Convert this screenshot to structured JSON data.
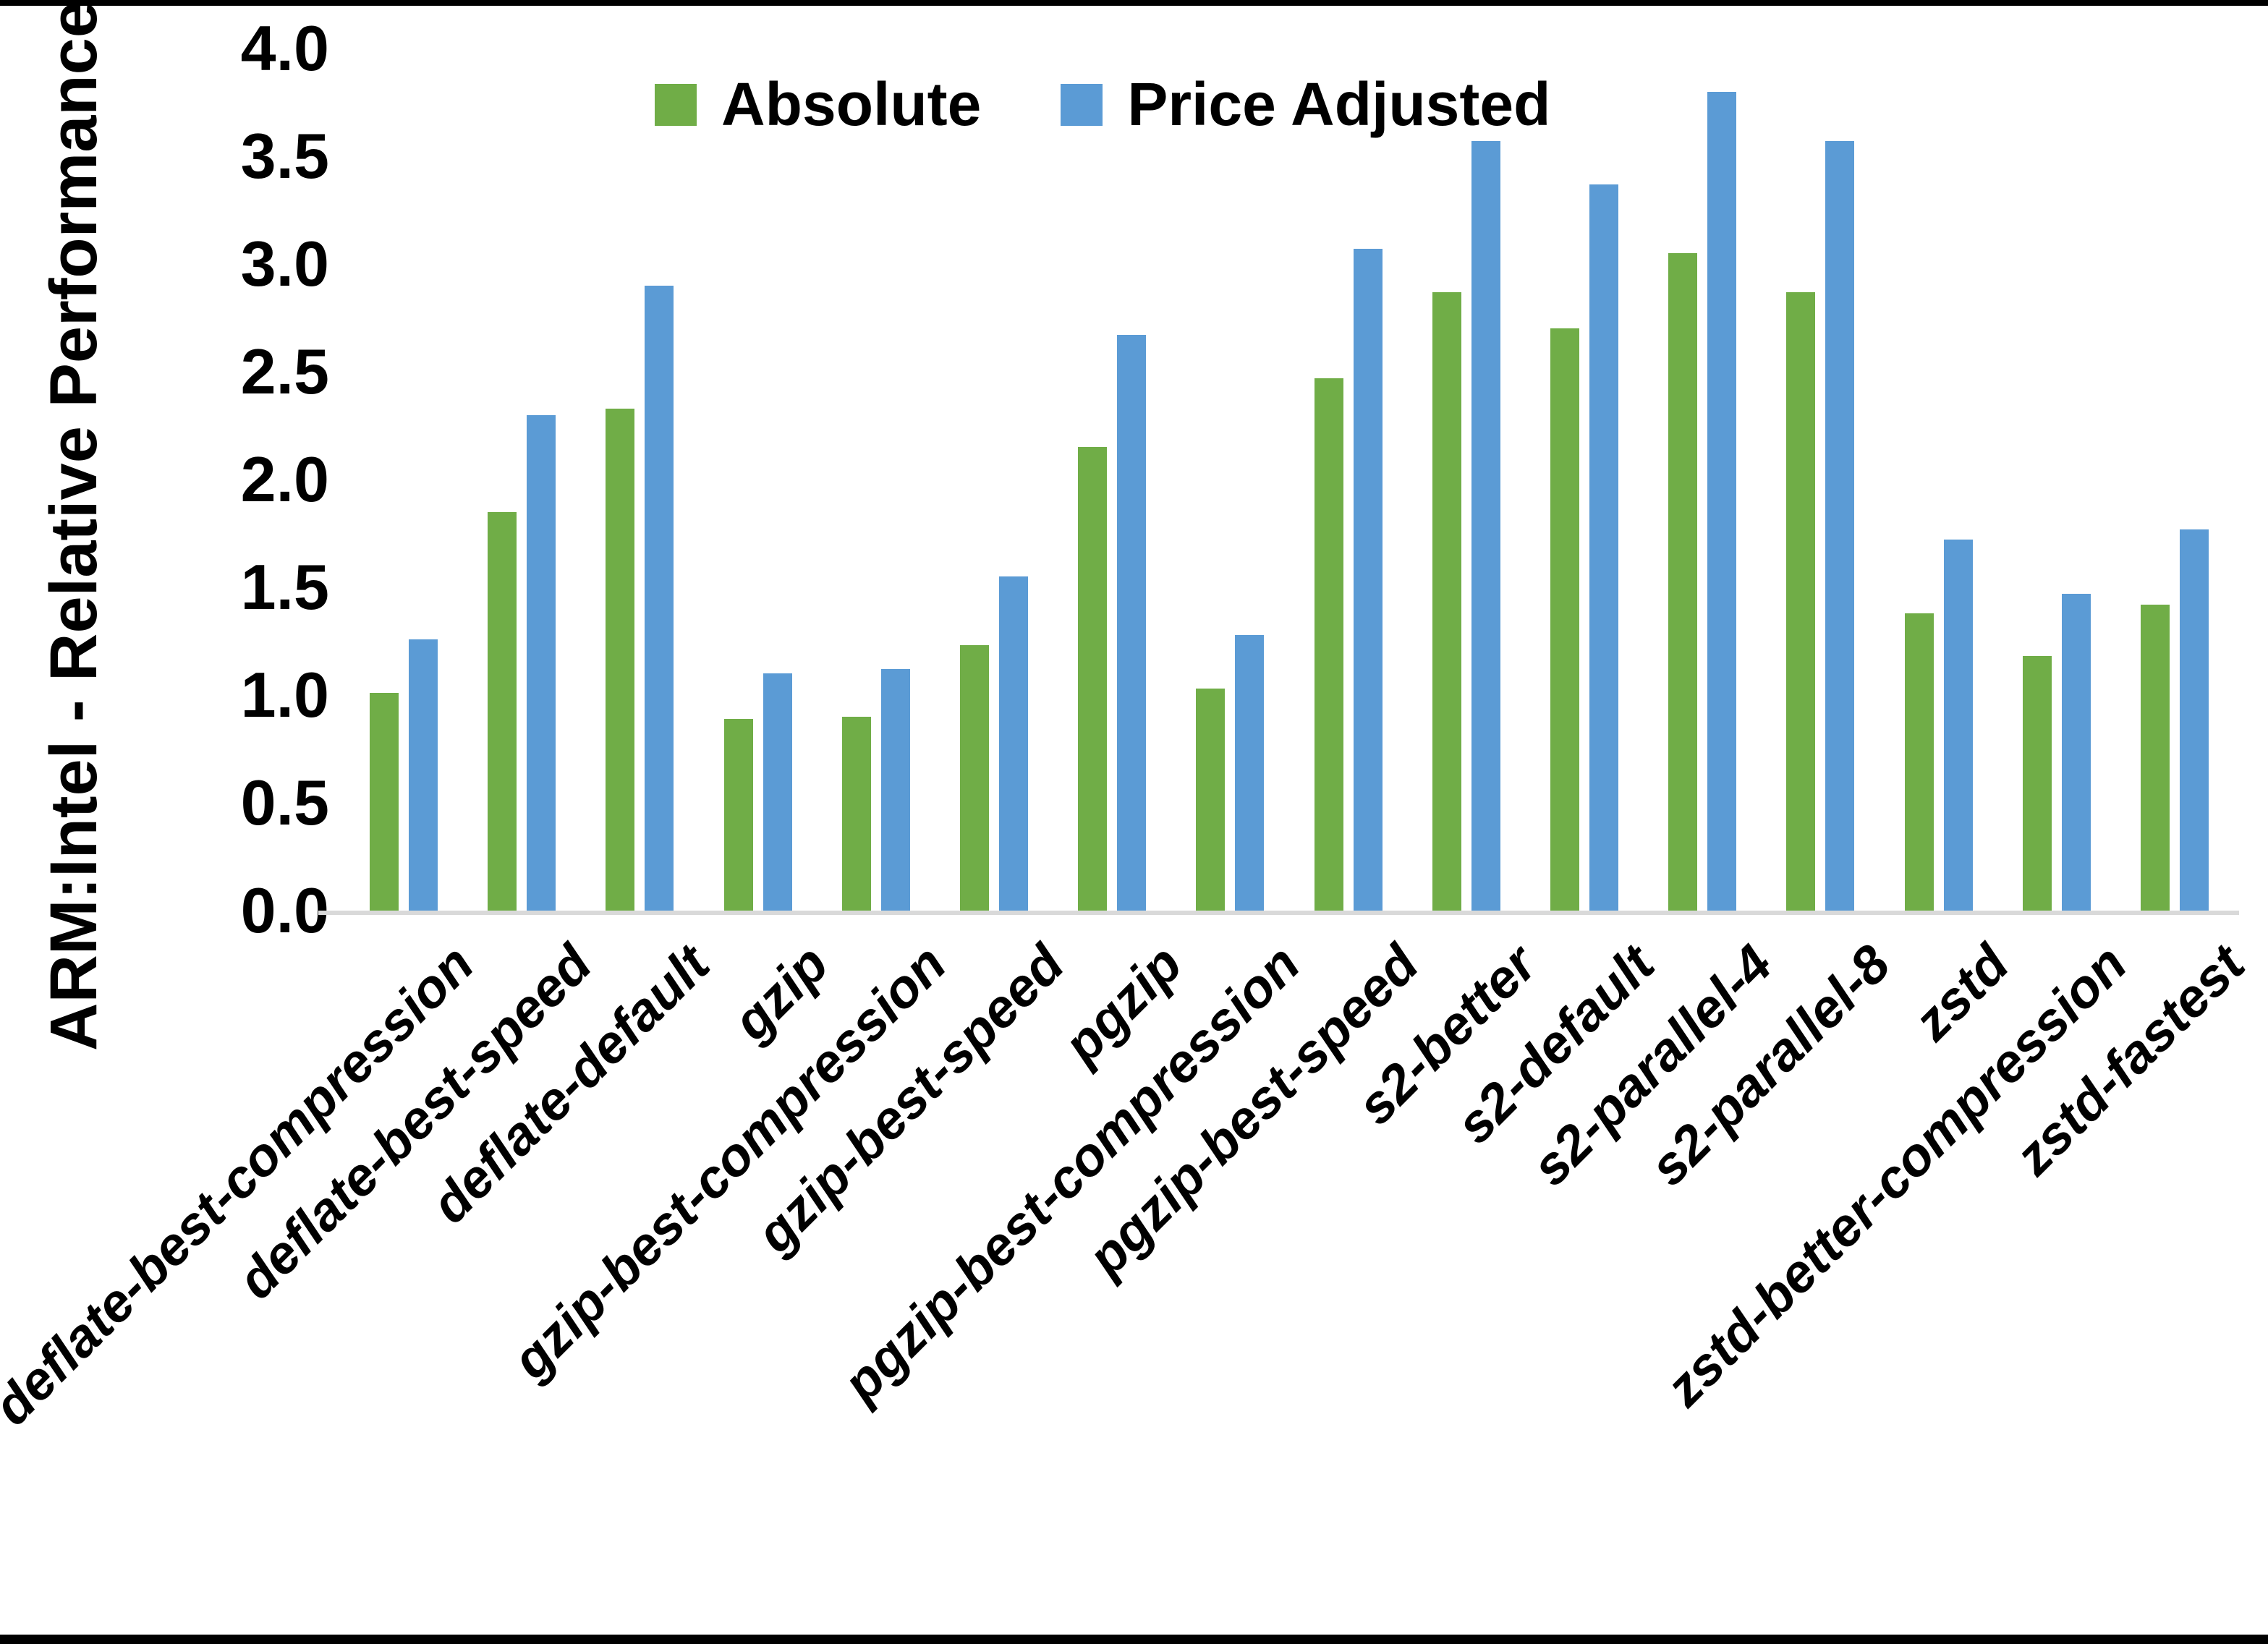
{
  "chart_data": {
    "type": "bar",
    "title": "",
    "ylabel": "ARM:Intel - Relative Performance",
    "xlabel": "",
    "ylim": [
      0.0,
      4.0
    ],
    "ytick_step": 0.5,
    "ytick_labels": [
      "0.0",
      "0.5",
      "1.0",
      "1.5",
      "2.0",
      "2.5",
      "3.0",
      "3.5",
      "4.0"
    ],
    "grid": "off",
    "legend_position": "top",
    "categories": [
      "deflate-best-compression",
      "deflate-best-speed",
      "deflate-default",
      "gzip",
      "gzip-best-compression",
      "gzip-best-speed",
      "pgzip",
      "pgzip-best-compression",
      "pgzip-best-speed",
      "s2-better",
      "s2-default",
      "s2-parallel-4",
      "s2-parallel-8",
      "zstd",
      "zstd-better-compression",
      "zstd-fastest"
    ],
    "series": [
      {
        "name": "Absolute",
        "color": "#70AD47",
        "values": [
          1.01,
          1.85,
          2.33,
          0.89,
          0.9,
          1.23,
          2.15,
          1.03,
          2.47,
          2.87,
          2.7,
          3.05,
          2.87,
          1.38,
          1.18,
          1.42
        ]
      },
      {
        "name": "Price Adjusted",
        "color": "#5B9BD5",
        "values": [
          1.26,
          2.3,
          2.9,
          1.1,
          1.12,
          1.55,
          2.67,
          1.28,
          3.07,
          3.57,
          3.37,
          3.8,
          3.57,
          1.72,
          1.47,
          1.77
        ]
      }
    ],
    "axis_line_color": "#d9d9d9",
    "border_color": "#000000"
  },
  "layout_note_visible_text_only": true
}
